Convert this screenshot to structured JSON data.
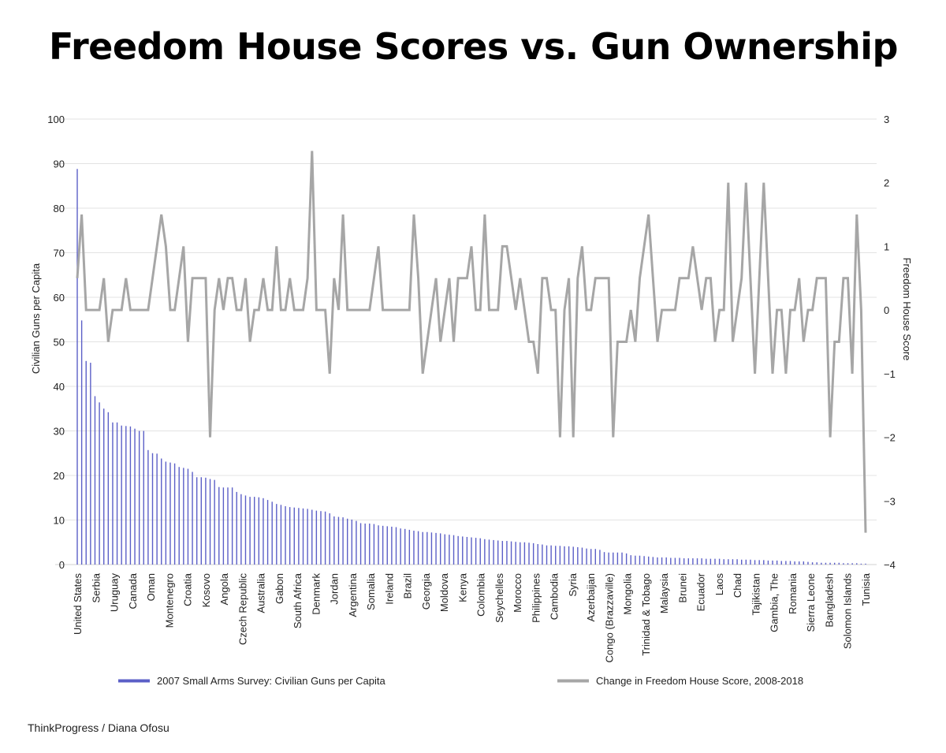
{
  "title": "Freedom House Scores vs. Gun Ownership",
  "credit": "ThinkProgress / Diana Ofosu",
  "chart_data": {
    "type": "bar",
    "ylabel": "Civilian Guns per Capita",
    "y2label": "Freedom House Score",
    "ylim": [
      0,
      100
    ],
    "y2lim": [
      -4,
      3
    ],
    "yticks": [
      0,
      10,
      20,
      30,
      40,
      50,
      60,
      70,
      80,
      90,
      100
    ],
    "y2ticks": [
      -4,
      -3,
      -2,
      -1,
      0,
      1,
      2,
      3
    ],
    "grid": true,
    "legend_position": "bottom",
    "colors": {
      "bars": "#5b5fc7",
      "line": "#a6a6a6",
      "grid": "#e3e3e3"
    },
    "tick_labels": [
      "United States",
      "Serbia",
      "Uruguay",
      "Canada",
      "Oman",
      "Montenegro",
      "Croatia",
      "Kosovo",
      "Angola",
      "Czech Republic",
      "Australia",
      "Gabon",
      "South Africa",
      "Denmark",
      "Jordan",
      "Argentina",
      "Somalia",
      "Ireland",
      "Brazil",
      "Georgia",
      "Moldova",
      "Kenya",
      "Colombia",
      "Seychelles",
      "Morocco",
      "Philippines",
      "Cambodia",
      "Syria",
      "Azerbaijan",
      "Congo (Brazzaville)",
      "Mongolia",
      "Trinidad & Tobago",
      "Malaysia",
      "Brunei",
      "Ecuador",
      "Laos",
      "Chad",
      "Tajikistan",
      "Gambia, The",
      "Romania",
      "Sierra Leone",
      "Bangladesh",
      "Solomon Islands",
      "Tunisia"
    ],
    "series": [
      {
        "name": "2007 Small Arms Survey: Civilian Guns per Capita",
        "type": "bar",
        "axis": "left",
        "values": [
          88.8,
          54.8,
          45.7,
          45.3,
          37.8,
          36.4,
          35,
          34.2,
          31.9,
          31.9,
          31.2,
          31.1,
          31,
          30.5,
          30,
          30,
          25.7,
          25,
          24.9,
          23.8,
          23.1,
          22.9,
          22.7,
          21.9,
          21.7,
          21.5,
          20.8,
          19.6,
          19.6,
          19.5,
          19.2,
          19,
          17.4,
          17.3,
          17.3,
          17.3,
          16.3,
          15.8,
          15.5,
          15.2,
          15.2,
          15.1,
          14.9,
          14.5,
          14.1,
          13.6,
          13.4,
          13.1,
          12.9,
          12.8,
          12.7,
          12.6,
          12.5,
          12.3,
          12.1,
          12,
          11.9,
          11.5,
          10.8,
          10.7,
          10.6,
          10.3,
          10.1,
          9.8,
          9.3,
          9.2,
          9.2,
          9.1,
          8.8,
          8.7,
          8.6,
          8.5,
          8.4,
          8.1,
          8,
          7.8,
          7.6,
          7.5,
          7.3,
          7.3,
          7.2,
          7.1,
          7,
          6.8,
          6.7,
          6.6,
          6.4,
          6.3,
          6.2,
          6.1,
          6,
          5.9,
          5.7,
          5.6,
          5.5,
          5.4,
          5.3,
          5.3,
          5.2,
          5.1,
          5,
          5,
          4.9,
          4.8,
          4.6,
          4.5,
          4.3,
          4.3,
          4.2,
          4.2,
          4.1,
          4.1,
          4,
          3.9,
          3.8,
          3.6,
          3.5,
          3.5,
          3.3,
          2.8,
          2.7,
          2.7,
          2.7,
          2.7,
          2.5,
          2.1,
          2,
          2,
          1.9,
          1.8,
          1.7,
          1.6,
          1.6,
          1.6,
          1.5,
          1.5,
          1.5,
          1.4,
          1.4,
          1.4,
          1.4,
          1.4,
          1.3,
          1.3,
          1.3,
          1.3,
          1.2,
          1.2,
          1.2,
          1.2,
          1.1,
          1.1,
          1.1,
          1,
          1,
          1,
          0.9,
          0.9,
          0.9,
          0.8,
          0.8,
          0.8,
          0.7,
          0.7,
          0.7,
          0.6,
          0.5,
          0.5,
          0.4,
          0.4,
          0.4,
          0.4,
          0.4,
          0.3,
          0.3,
          0.3,
          0.3,
          0.2,
          0.2
        ]
      },
      {
        "name": "Change in Freedom House Score, 2008-2018",
        "type": "line",
        "axis": "right",
        "values": [
          0.5,
          1.5,
          0,
          0,
          0,
          0,
          0.5,
          -0.5,
          0,
          0,
          0,
          0.5,
          0,
          0,
          0,
          0,
          0,
          0.5,
          1,
          1.5,
          1,
          0,
          0,
          0.5,
          1,
          -0.5,
          0.5,
          0.5,
          0.5,
          0.5,
          -2,
          0,
          0.5,
          0,
          0.5,
          0.5,
          0,
          0,
          0.5,
          -0.5,
          0,
          0,
          0.5,
          0,
          0,
          1,
          0,
          0,
          0.5,
          0,
          0,
          0,
          0.5,
          2.5,
          0,
          0,
          0,
          -1,
          0.5,
          0,
          1.5,
          0,
          0,
          0,
          0,
          0,
          0,
          0.5,
          1,
          0,
          0,
          0,
          0,
          0,
          0,
          0,
          1.5,
          0.5,
          -1,
          -0.5,
          0,
          0.5,
          -0.5,
          0,
          0.5,
          -0.5,
          0.5,
          0.5,
          0.5,
          1,
          0,
          0,
          1.5,
          0,
          0,
          0,
          1,
          1,
          0.5,
          0,
          0.5,
          0,
          -0.5,
          -0.5,
          -1,
          0.5,
          0.5,
          0,
          0,
          -2,
          0,
          0.5,
          -2,
          0.5,
          1,
          0,
          0,
          0.5,
          0.5,
          0.5,
          0.5,
          -2,
          -0.5,
          -0.5,
          -0.5,
          0,
          -0.5,
          0.5,
          1,
          1.5,
          0.5,
          -0.5,
          0,
          0,
          0,
          0,
          0.5,
          0.5,
          0.5,
          1,
          0.5,
          0,
          0.5,
          0.5,
          -0.5,
          0,
          0,
          2,
          -0.5,
          0,
          0.5,
          2,
          0.5,
          -1,
          0.5,
          2,
          0.5,
          -1,
          0,
          0,
          -1,
          0,
          0,
          0.5,
          -0.5,
          0,
          0,
          0.5,
          0.5,
          0.5,
          -2,
          -0.5,
          -0.5,
          0.5,
          0.5,
          -1,
          1.5,
          0,
          -3.5
        ]
      }
    ]
  }
}
